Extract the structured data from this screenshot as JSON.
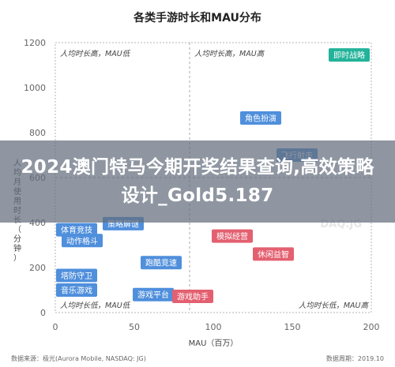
{
  "banner": {
    "text": "2024澳门特马今期开奖结果查询,高效策略设计_Gold5.187"
  },
  "watermark": "DAQ:JG",
  "footer": {
    "source": "数据来源：极光(Aurora Mobile, NASDAQ: JG)",
    "period": "数据周期：2019.10"
  },
  "colors": {
    "blue": "#4f8fdc",
    "red": "#e36070",
    "teal": "#22b39a",
    "text_dark": "#222222",
    "axis_text": "#666666",
    "grid": "#aaaaaa"
  },
  "chart_data": {
    "type": "scatter",
    "title": "各类手游时长和MAU分布",
    "xlabel": "MAU（百万）",
    "ylabel": "人均月使用时长（分钟）",
    "xlim": [
      0,
      200
    ],
    "ylim": [
      0,
      1200
    ],
    "xticks": [
      0,
      50,
      100,
      150,
      200
    ],
    "yticks": [
      0,
      200,
      400,
      600,
      800,
      1000,
      1200
    ],
    "divider_x": 85,
    "divider_y": 600,
    "quadrant_labels": [
      "人均时长高，MAU低",
      "人均时长高，MAU高",
      "人均时长低，MAU低",
      "人均时长低，MAU高"
    ],
    "points": [
      {
        "label": "即时战略",
        "x": 186,
        "y": 1145,
        "color": "#22b39a"
      },
      {
        "label": "飞行射击",
        "x": 153,
        "y": 700,
        "color": "#4f8fdc"
      },
      {
        "label": "角色扮演",
        "x": 130,
        "y": 865,
        "color": "#4f8fdc"
      },
      {
        "label": "体育竞技",
        "x": 7,
        "y": 368,
        "color": "#4f8fdc"
      },
      {
        "label": "策略解谜",
        "x": 43,
        "y": 395,
        "color": "#4f8fdc"
      },
      {
        "label": "动作格斗",
        "x": 17,
        "y": 320,
        "color": "#4f8fdc"
      },
      {
        "label": "模拟经营",
        "x": 112,
        "y": 340,
        "color": "#e36070"
      },
      {
        "label": "休闲益智",
        "x": 138,
        "y": 260,
        "color": "#e36070"
      },
      {
        "label": "跑酷竞速",
        "x": 67,
        "y": 222,
        "color": "#4f8fdc"
      },
      {
        "label": "塔防守卫",
        "x": 2,
        "y": 165,
        "color": "#4f8fdc"
      },
      {
        "label": "音乐游戏",
        "x": 11,
        "y": 100,
        "color": "#4f8fdc"
      },
      {
        "label": "游戏平台",
        "x": 62,
        "y": 80,
        "color": "#4f8fdc"
      },
      {
        "label": "游戏助手",
        "x": 87,
        "y": 72,
        "color": "#e36070"
      }
    ]
  }
}
